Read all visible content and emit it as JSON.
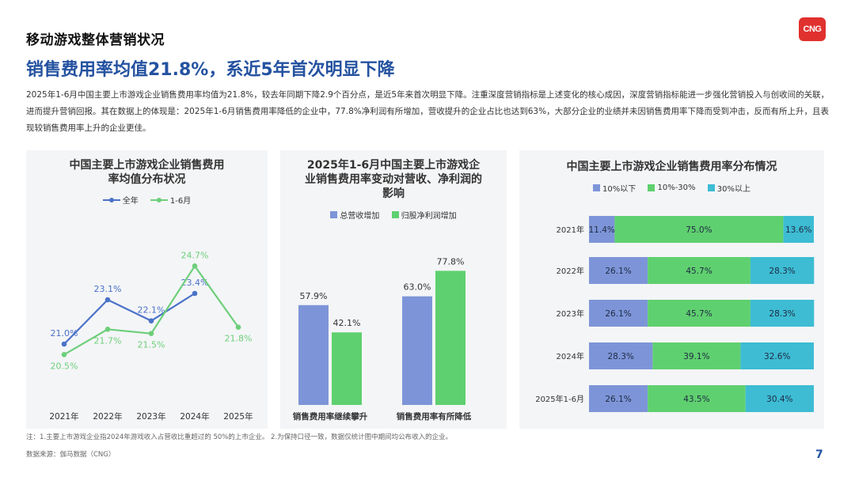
{
  "header": {
    "section_title": "移动游戏整体营销状况",
    "logo_text": "CNG",
    "headline": "销售费用率均值21.8%，系近5年首次明显下降",
    "summary": "2025年1-6月中国主要上市游戏企业销售费用率均值为21.8%，较去年同期下降2.9个百分点，是近5年来首次明显下降。注重深度营销指标是上述变化的核心成因，深度营销指标能进一步强化营销投入与创收间的关联，进而提升营销回报。其在数据上的体现是：2025年1-6月销售费用率降低的企业中，77.8%净利润有所增加，营收提升的企业占比也达到63%，大部分企业的业绩并未因销售费用率下降而受到冲击，反而有所上升，且表现较销售费用率上升的企业更佳。"
  },
  "colors": {
    "blue": "#4a72c8",
    "green": "#6dcf7a",
    "bar_blue": "#7d95d8",
    "bar_green": "#5fd06f",
    "cyan": "#3dbcd3",
    "headline": "#2452a0"
  },
  "chart_data": [
    {
      "type": "line",
      "title": "中国主要上市游戏企业销售费用率均值分布状况",
      "categories": [
        "2021年",
        "2022年",
        "2023年",
        "2024年",
        "2025年"
      ],
      "series": [
        {
          "name": "全年",
          "values": [
            21.0,
            23.1,
            22.1,
            23.4,
            null
          ],
          "color": "#4a72c8"
        },
        {
          "name": "1-6月",
          "values": [
            20.5,
            21.7,
            21.5,
            24.7,
            21.8
          ],
          "color": "#6dcf7a"
        }
      ],
      "data_labels": {
        "全年": [
          "21.0%",
          "23.1%",
          "22.1%",
          "23.4%",
          ""
        ],
        "1-6月": [
          "20.5%",
          "21.7%",
          "21.5%",
          "24.7%",
          "21.8%"
        ]
      },
      "ylim": [
        18,
        27
      ],
      "legend": "top"
    },
    {
      "type": "bar",
      "title": "2025年1-6月中国主要上市游戏企业销售费用率变动对营收、净利润的影响",
      "categories": [
        "销售费用率继续攀升",
        "销售费用率有所降低"
      ],
      "series": [
        {
          "name": "总营收增加",
          "values": [
            57.9,
            63.0
          ],
          "color": "#7d95d8"
        },
        {
          "name": "归股净利润增加",
          "values": [
            42.1,
            77.8
          ],
          "color": "#5fd06f"
        }
      ],
      "ylim": [
        0,
        100
      ],
      "legend": "top"
    },
    {
      "type": "bar",
      "orientation": "horizontal",
      "stacked": true,
      "title": "中国主要上市游戏企业销售费用率分布情况",
      "categories": [
        "2021年",
        "2022年",
        "2023年",
        "2024年",
        "2025年1-6月"
      ],
      "series": [
        {
          "name": "10%以下",
          "values": [
            11.4,
            26.1,
            26.1,
            28.3,
            26.1
          ],
          "color": "#7d95d8"
        },
        {
          "name": "10%-30%",
          "values": [
            75.0,
            45.7,
            45.7,
            39.1,
            43.5
          ],
          "color": "#5fd06f"
        },
        {
          "name": "30%以上",
          "values": [
            13.6,
            28.3,
            28.3,
            32.6,
            30.4
          ],
          "color": "#3dbcd3"
        }
      ],
      "xlim": [
        0,
        100
      ],
      "legend": "top"
    }
  ],
  "footer": {
    "footnote": "注：1.主要上市游戏企业指2024年游戏收入占营收比重超过的 50%的上市企业。   2.为保持口径一致，数据仅统计图中期间均公布收入的企业。",
    "source": "数据来源：伽马数据（CNG）",
    "page_number": "7"
  }
}
